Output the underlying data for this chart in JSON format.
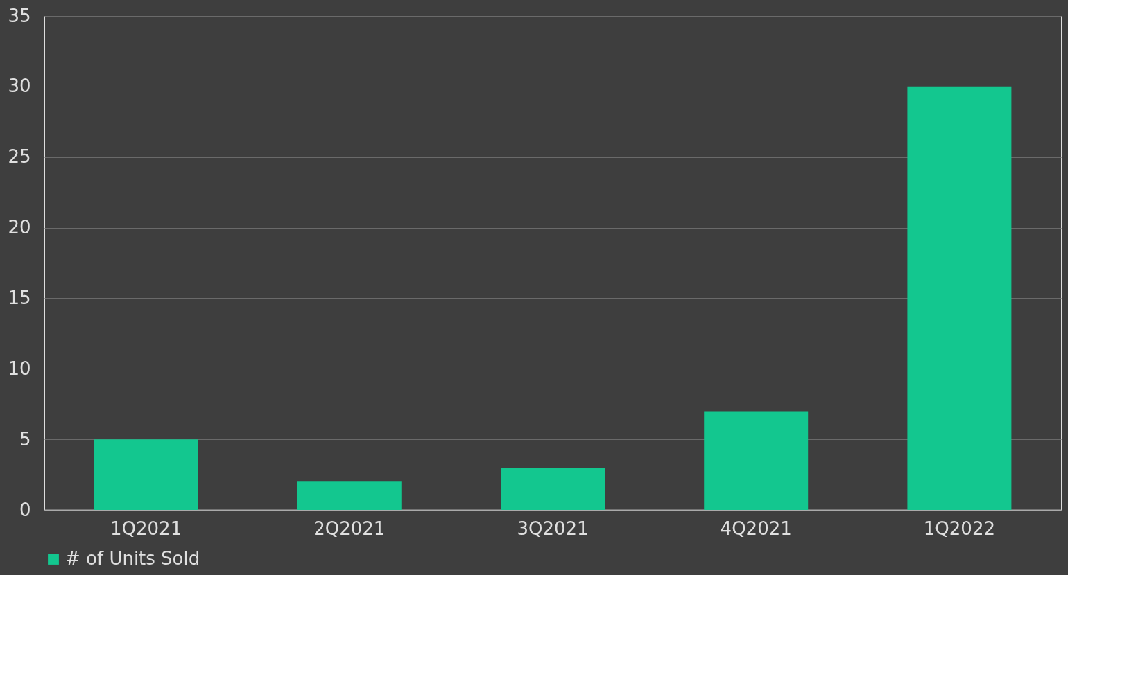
{
  "chart_data": {
    "type": "bar",
    "categories": [
      "1Q2021",
      "2Q2021",
      "3Q2021",
      "4Q2021",
      "1Q2022"
    ],
    "series": [
      {
        "name": "# of Units Sold",
        "color": "#13c78f",
        "values": [
          5,
          2,
          3,
          7,
          30
        ]
      }
    ],
    "ylim": [
      0,
      35
    ],
    "yticks": [
      0,
      5,
      10,
      15,
      20,
      25,
      30,
      35
    ],
    "grid": "y",
    "legend": "bottom"
  }
}
